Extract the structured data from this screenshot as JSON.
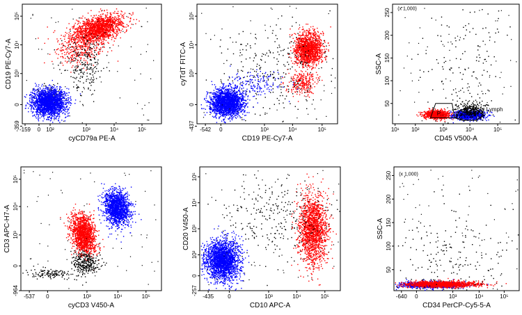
{
  "colors": {
    "red": "#ff0000",
    "blue": "#0000ff",
    "black": "#000000"
  },
  "chart_data": [
    {
      "type": "scatter",
      "xlabel": "cyCD79a PE-A",
      "ylabel": "CD19 PE-Cy7-A",
      "xscale": "biexponential",
      "yscale": "biexponential",
      "xtick_labels": [
        "-159",
        "0",
        "10²",
        "10³",
        "10⁴",
        "10⁵"
      ],
      "ytick_labels": [
        "-359",
        "0",
        "10³",
        "10⁴",
        "10⁵"
      ],
      "xlim": [
        -159,
        262143
      ],
      "ylim": [
        -359,
        262143
      ],
      "series": [
        {
          "color": "#ff0000",
          "clusters": [
            {
              "x": 3000,
              "y": 20000,
              "count": 1600
            },
            {
              "x": 700,
              "y": 6000,
              "count": 350
            }
          ]
        },
        {
          "color": "#000000",
          "clusters": [
            {
              "x": 800,
              "y": 2000,
              "count": 220
            },
            {
              "x": 80,
              "y": 80,
              "count": 120
            }
          ]
        },
        {
          "color": "#0000ff",
          "clusters": [
            {
              "x": 60,
              "y": 20,
              "count": 2000
            }
          ]
        }
      ]
    },
    {
      "type": "scatter",
      "xlabel": "CD19 PE-Cy7-A",
      "ylabel": "cyTdT FITC-A",
      "xscale": "biexponential",
      "yscale": "biexponential",
      "xtick_labels": [
        "-542",
        "0",
        "10³",
        "10⁴",
        "10⁵"
      ],
      "ytick_labels": [
        "-437",
        "0",
        "10³",
        "10⁴",
        "10⁵"
      ],
      "xlim": [
        -542,
        262143
      ],
      "ylim": [
        -437,
        262143
      ],
      "series": [
        {
          "color": "#ff0000",
          "clusters": [
            {
              "x": 22000,
              "y": 9000,
              "count": 1400
            },
            {
              "x": 15000,
              "y": 900,
              "count": 250
            }
          ]
        },
        {
          "color": "#000000",
          "clusters": [
            {
              "x": 3000,
              "y": 2000,
              "count": 260
            }
          ]
        },
        {
          "color": "#0000ff",
          "clusters": [
            {
              "x": 20,
              "y": 20,
              "count": 2000
            },
            {
              "x": 1500,
              "y": 200,
              "count": 150
            }
          ]
        }
      ]
    },
    {
      "type": "scatter",
      "xlabel": "CD45 V500-A",
      "ylabel": "SSC-A",
      "xscale": "log",
      "yscale": "linear",
      "ymultiplier": "(x 1,000)",
      "xtick_labels": [
        "10¹",
        "10²",
        "10³",
        "10⁴",
        "10⁵"
      ],
      "ytick_labels": [
        "50",
        "100",
        "150",
        "200",
        "250"
      ],
      "xlim": [
        10,
        262143
      ],
      "ylim": [
        0,
        262
      ],
      "gates": [
        "P...",
        "Lymph"
      ],
      "series": [
        {
          "color": "#ff0000",
          "clusters": [
            {
              "x": 500,
              "y": 12,
              "count": 900
            }
          ]
        },
        {
          "color": "#0000ff",
          "clusters": [
            {
              "x": 6000,
              "y": 10,
              "count": 900
            }
          ]
        },
        {
          "color": "#000000",
          "clusters": [
            {
              "x": 8000,
              "y": 14,
              "count": 300
            },
            {
              "x": 3000,
              "y": 90,
              "count": 160
            }
          ]
        }
      ]
    },
    {
      "type": "scatter",
      "xlabel": "cyCD3 V450-A",
      "ylabel": "CD3 APC-H7-A",
      "xscale": "biexponential",
      "yscale": "biexponential",
      "xtick_labels": [
        "-537",
        "0",
        "10³",
        "10⁴",
        "10⁵"
      ],
      "ytick_labels": [
        "-964",
        "0",
        "10³",
        "10⁴",
        "10⁵"
      ],
      "xlim": [
        -537,
        262143
      ],
      "ylim": [
        -964,
        262143
      ],
      "series": [
        {
          "color": "#0000ff",
          "clusters": [
            {
              "x": 8000,
              "y": 8000,
              "count": 1500
            }
          ]
        },
        {
          "color": "#ff0000",
          "clusters": [
            {
              "x": 1200,
              "y": 1000,
              "count": 1500
            }
          ]
        },
        {
          "color": "#000000",
          "clusters": [
            {
              "x": 2000,
              "y": 50,
              "count": 300
            },
            {
              "x": 20,
              "y": 0,
              "count": 120
            }
          ]
        }
      ]
    },
    {
      "type": "scatter",
      "xlabel": "CD10 APC-A",
      "ylabel": "CD20 V450-A",
      "xscale": "biexponential",
      "yscale": "biexponential",
      "xtick_labels": [
        "-435",
        "0",
        "10³",
        "10⁴",
        "10⁵"
      ],
      "ytick_labels": [
        "-257",
        "0",
        "10²",
        "10³",
        "10⁴",
        "10⁵"
      ],
      "xlim": [
        -435,
        262143
      ],
      "ylim": [
        -257,
        262143
      ],
      "series": [
        {
          "color": "#ff0000",
          "clusters": [
            {
              "x": 60000,
              "y": 1500,
              "count": 1700
            }
          ]
        },
        {
          "color": "#000000",
          "clusters": [
            {
              "x": 3000,
              "y": 2500,
              "count": 260
            }
          ]
        },
        {
          "color": "#0000ff",
          "clusters": [
            {
              "x": 20,
              "y": 60,
              "count": 2200
            }
          ]
        }
      ]
    },
    {
      "type": "scatter",
      "xlabel": "CD34 PerCP-Cy5-5-A",
      "ylabel": "SSC-A",
      "xscale": "biexponential",
      "yscale": "linear",
      "ymultiplier": "(x 1,000)",
      "xtick_labels": [
        "-640",
        "0",
        "10³",
        "10⁴",
        "10⁵"
      ],
      "ytick_labels": [
        "50",
        "100",
        "150",
        "200",
        "250"
      ],
      "xlim": [
        -640,
        262143
      ],
      "ylim": [
        0,
        262
      ],
      "series": [
        {
          "color": "#0000ff",
          "clusters": [
            {
              "x": 200,
              "y": 10,
              "count": 1200
            }
          ]
        },
        {
          "color": "#ff0000",
          "clusters": [
            {
              "x": 300,
              "y": 12,
              "count": 1300
            }
          ]
        },
        {
          "color": "#000000",
          "clusters": [
            {
              "x": 1000,
              "y": 40,
              "count": 200
            }
          ]
        }
      ]
    }
  ]
}
